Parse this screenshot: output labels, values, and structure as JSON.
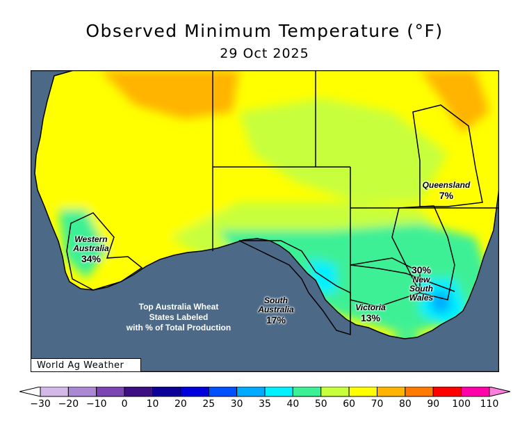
{
  "title": "Observed Minimum Temperature (°F)",
  "date": "29 Oct 2025",
  "credit": "World Ag Weather",
  "note": [
    "Top Australia Wheat",
    "States Labeled",
    "with % of Total Production"
  ],
  "states": [
    {
      "name_lines": [
        "Western",
        "Australia"
      ],
      "share": "34%"
    },
    {
      "name_lines": [
        "South",
        "Australia"
      ],
      "share": "17%"
    },
    {
      "name_lines": [
        "Victoria"
      ],
      "share": "13%"
    },
    {
      "name_lines": [
        "New",
        "South",
        "Wales"
      ],
      "share": "30%"
    },
    {
      "name_lines": [
        "Queensland"
      ],
      "share": "7%"
    }
  ],
  "legend": {
    "ticks": [
      "−30",
      "−20",
      "−10",
      "0",
      "10",
      "20",
      "25",
      "30",
      "35",
      "40",
      "50",
      "60",
      "70",
      "80",
      "90",
      "100",
      "110"
    ],
    "colors": [
      "#ffffff",
      "#d4b8e8",
      "#ab88d4",
      "#7b46b4",
      "#3e0f80",
      "#0c0096",
      "#0000dc",
      "#0050ff",
      "#00aaff",
      "#00f0ff",
      "#3cf096",
      "#c8ff3c",
      "#ffff00",
      "#ffb400",
      "#ff7a00",
      "#ff0000",
      "#ff00aa",
      "#ff7ddc"
    ]
  },
  "colors": {
    "ocean": "#4c6a88",
    "border": "#000000"
  }
}
